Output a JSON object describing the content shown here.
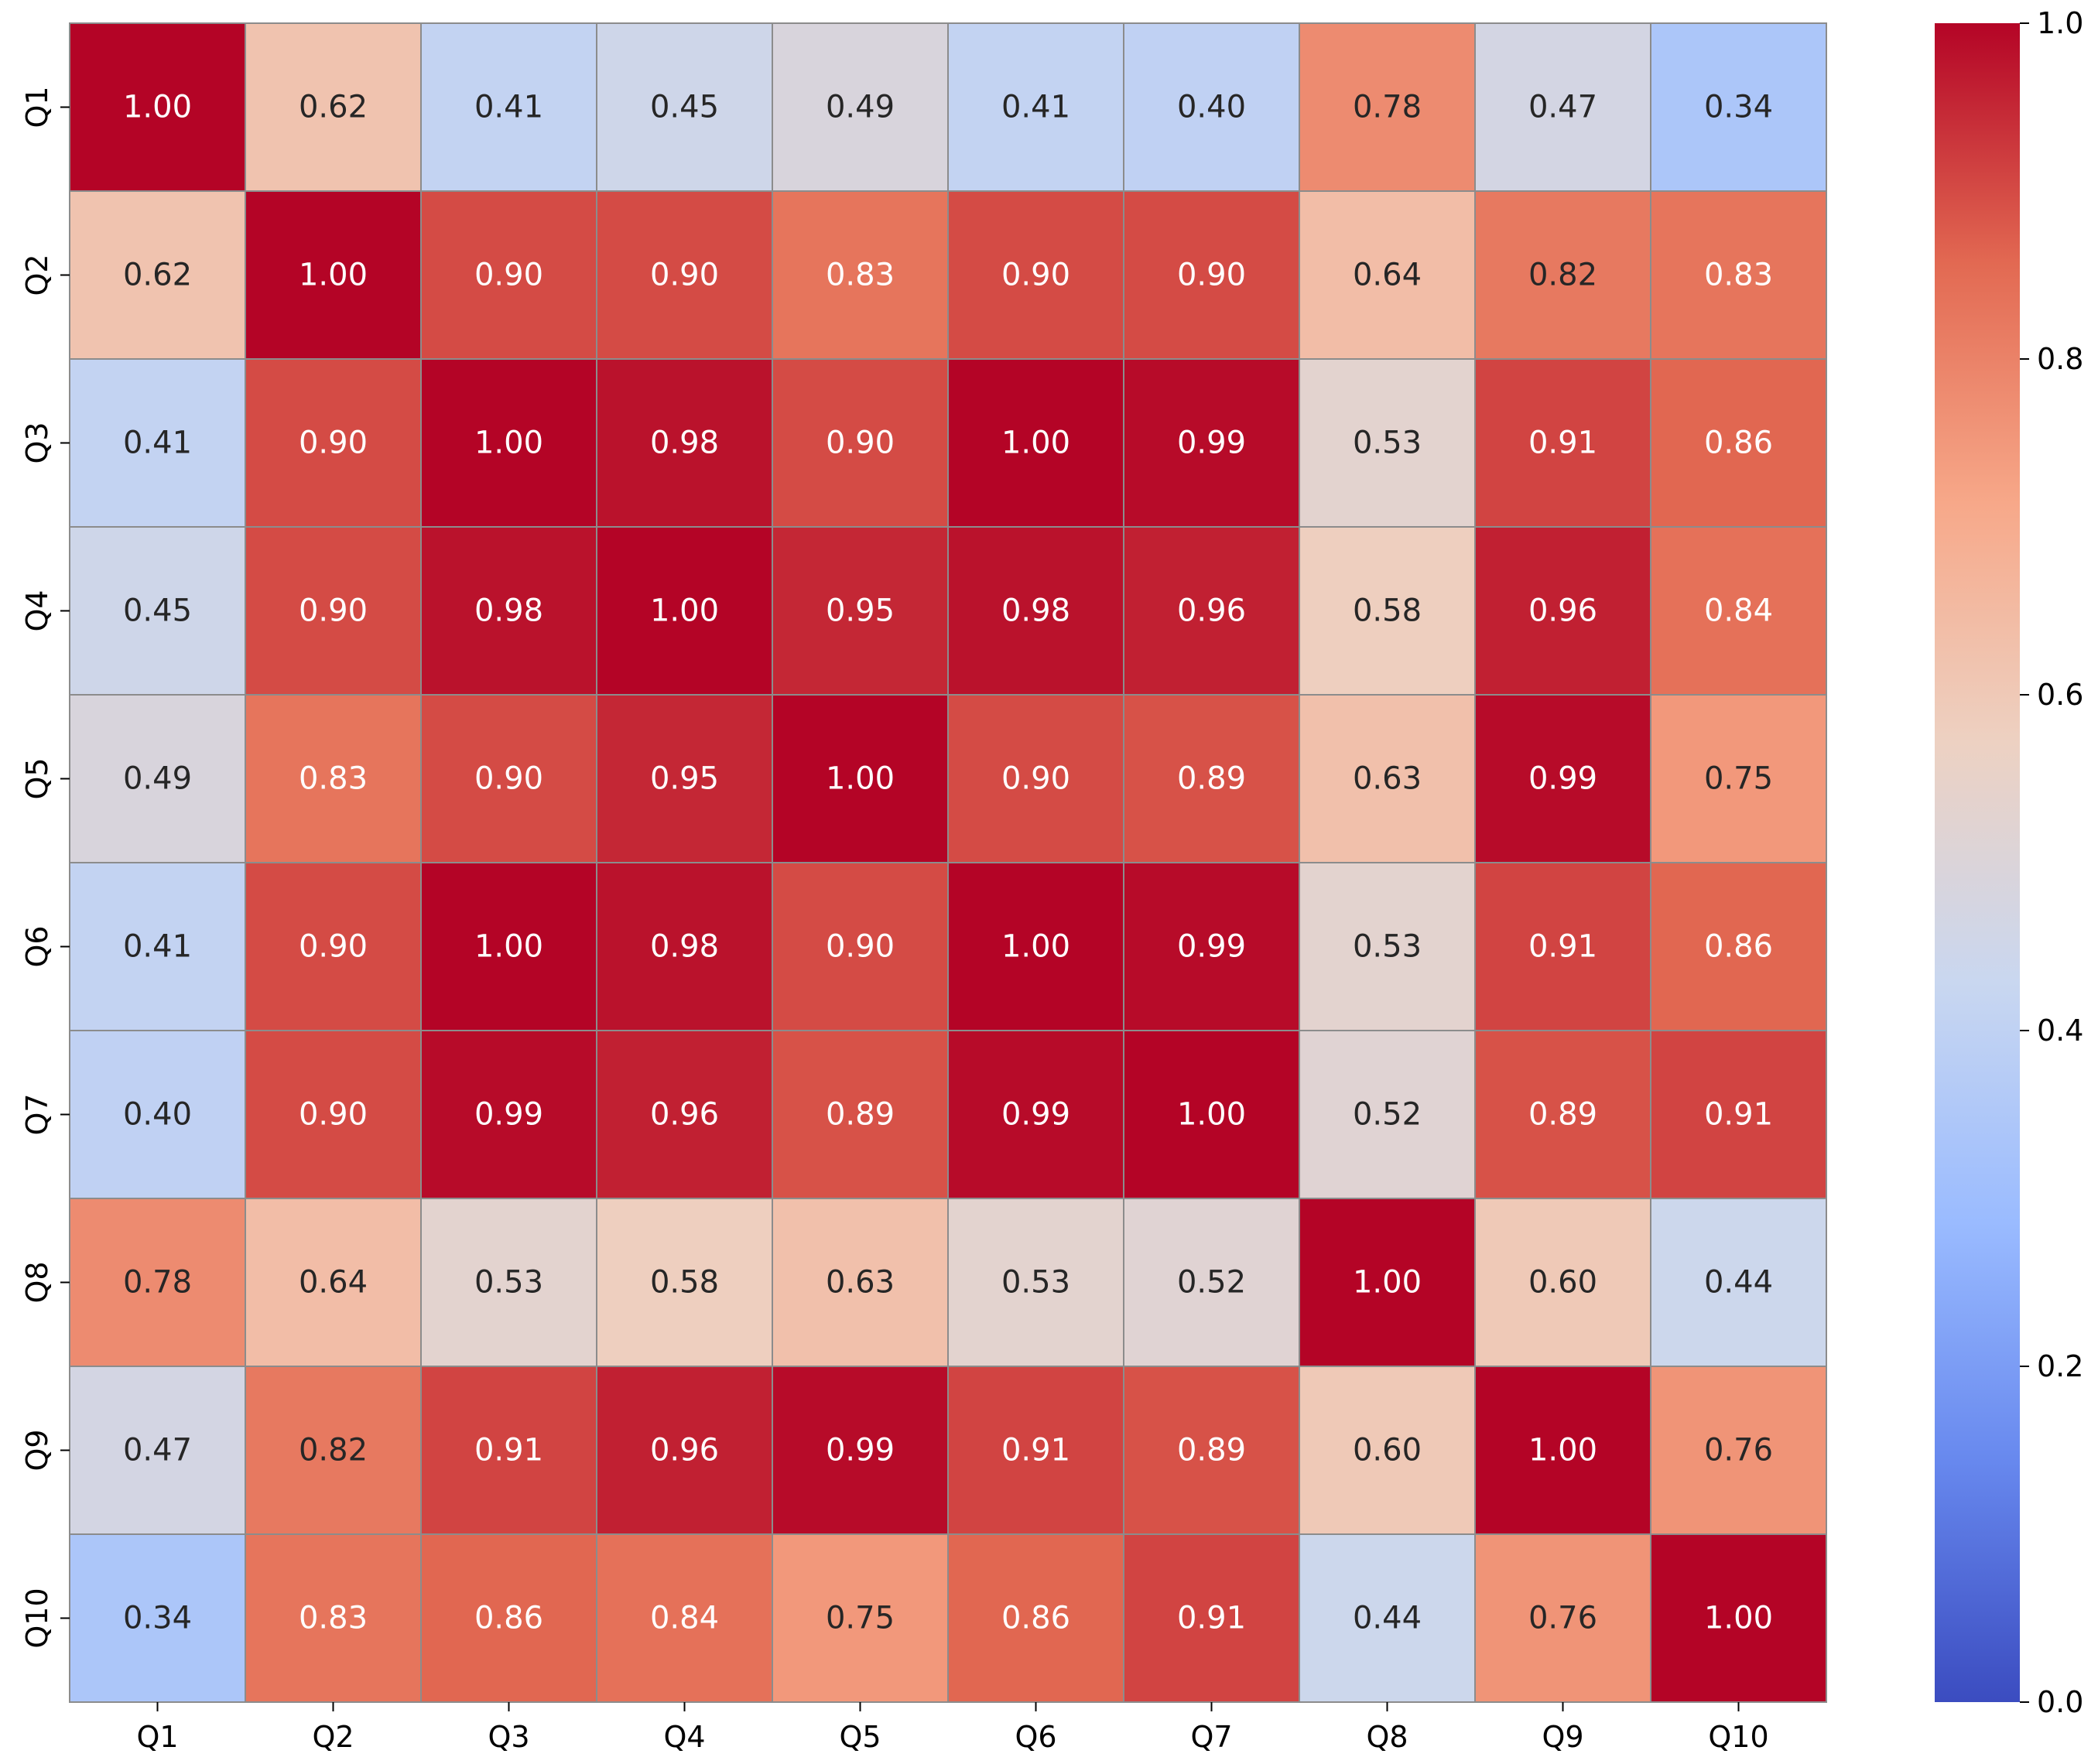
{
  "chart_data": {
    "type": "heatmap",
    "title": "",
    "xlabel": "",
    "ylabel": "",
    "rows": [
      "Q1",
      "Q2",
      "Q3",
      "Q4",
      "Q5",
      "Q6",
      "Q7",
      "Q8",
      "Q9",
      "Q10"
    ],
    "columns": [
      "Q1",
      "Q2",
      "Q3",
      "Q4",
      "Q5",
      "Q6",
      "Q7",
      "Q8",
      "Q9",
      "Q10"
    ],
    "values": [
      [
        1.0,
        0.62,
        0.41,
        0.45,
        0.49,
        0.41,
        0.4,
        0.78,
        0.47,
        0.34
      ],
      [
        0.62,
        1.0,
        0.9,
        0.9,
        0.83,
        0.9,
        0.9,
        0.64,
        0.82,
        0.83
      ],
      [
        0.41,
        0.9,
        1.0,
        0.98,
        0.9,
        1.0,
        0.99,
        0.53,
        0.91,
        0.86
      ],
      [
        0.45,
        0.9,
        0.98,
        1.0,
        0.95,
        0.98,
        0.96,
        0.58,
        0.96,
        0.84
      ],
      [
        0.49,
        0.83,
        0.9,
        0.95,
        1.0,
        0.9,
        0.89,
        0.63,
        0.99,
        0.75
      ],
      [
        0.41,
        0.9,
        1.0,
        0.98,
        0.9,
        1.0,
        0.99,
        0.53,
        0.91,
        0.86
      ],
      [
        0.4,
        0.9,
        0.99,
        0.96,
        0.89,
        0.99,
        1.0,
        0.52,
        0.89,
        0.91
      ],
      [
        0.78,
        0.64,
        0.53,
        0.58,
        0.63,
        0.53,
        0.52,
        1.0,
        0.6,
        0.44
      ],
      [
        0.47,
        0.82,
        0.91,
        0.96,
        0.99,
        0.91,
        0.89,
        0.6,
        1.0,
        0.76
      ],
      [
        0.34,
        0.83,
        0.86,
        0.84,
        0.75,
        0.86,
        0.91,
        0.44,
        0.76,
        1.0
      ]
    ],
    "value_format": "2 decimals",
    "colormap": "coolwarm",
    "colormap_stops": [
      "#3b4cc0",
      "#6788ee",
      "#9abbff",
      "#c9d7f0",
      "#edd1c2",
      "#f7a889",
      "#e26952",
      "#b40426"
    ],
    "vmin": 0.0,
    "vmax": 1.0,
    "colorbar": {
      "ticks": [
        0.0,
        0.2,
        0.4,
        0.6,
        0.8,
        1.0
      ],
      "tick_labels": [
        "0.0",
        "0.2",
        "0.4",
        "0.6",
        "0.8",
        "1.0"
      ],
      "placement": "right"
    },
    "cell_border_color": "#8c8c8c",
    "annotation_dark_text": "#262626",
    "annotation_light_text": "#ffffff"
  }
}
